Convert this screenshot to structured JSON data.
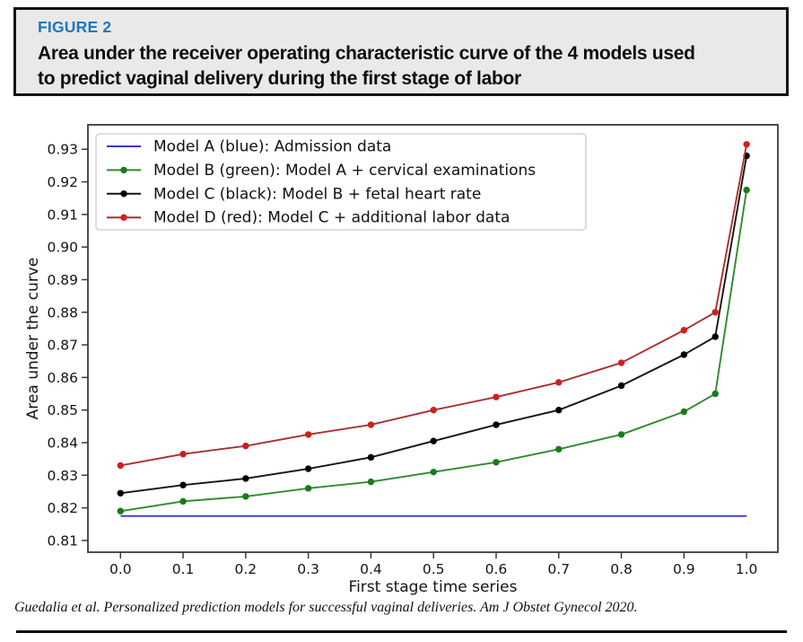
{
  "figure": {
    "label": "FIGURE 2",
    "label_color": "#1a78be",
    "title_line1": "Area under the receiver operating characteristic curve of the 4 models used",
    "title_line2": "to predict vaginal delivery during the first stage of labor"
  },
  "footer": {
    "citation": "Guedalia et al. Personalized prediction models for successful vaginal deliveries. Am J Obstet Gynecol 2020."
  },
  "chart_data": {
    "type": "line",
    "title": "",
    "xlabel": "First stage time series",
    "ylabel": "Area under the curve",
    "xlim": [
      -0.052,
      1.05
    ],
    "ylim": [
      0.8064,
      0.9375
    ],
    "grid": false,
    "legend_position": "upper left",
    "xticks": [
      0.0,
      0.1,
      0.2,
      0.3,
      0.4,
      0.5,
      0.6,
      0.7,
      0.8,
      0.9,
      1.0
    ],
    "xtick_labels": [
      "0.0",
      "0.1",
      "0.2",
      "0.3",
      "0.4",
      "0.5",
      "0.6",
      "0.7",
      "0.8",
      "0.9",
      "1.0"
    ],
    "yticks": [
      0.81,
      0.82,
      0.83,
      0.84,
      0.85,
      0.86,
      0.87,
      0.88,
      0.89,
      0.9,
      0.91,
      0.92,
      0.93
    ],
    "ytick_labels": [
      "0.81",
      "0.82",
      "0.83",
      "0.84",
      "0.85",
      "0.86",
      "0.87",
      "0.88",
      "0.89",
      "0.90",
      "0.91",
      "0.92",
      "0.93"
    ],
    "x": [
      0.0,
      0.1,
      0.2,
      0.3,
      0.4,
      0.5,
      0.6,
      0.7,
      0.8,
      0.9,
      0.95,
      1.0
    ],
    "series": [
      {
        "name": "Model A (blue): Admission data",
        "color": "#3b33e0",
        "marker": false,
        "values": [
          0.8175,
          0.8175,
          0.8175,
          0.8175,
          0.8175,
          0.8175,
          0.8175,
          0.8175,
          0.8175,
          0.8175,
          0.8175,
          0.8175
        ]
      },
      {
        "name": "Model B (green): Model A + cervical examinations",
        "color": "#2e8b2e",
        "marker": true,
        "marker_color": "#1b7a1b",
        "values": [
          0.819,
          0.822,
          0.8235,
          0.826,
          0.828,
          0.831,
          0.834,
          0.838,
          0.8425,
          0.8495,
          0.855,
          0.9175
        ]
      },
      {
        "name": "Model C (black): Model B + fetal heart rate",
        "color": "#141414",
        "marker": true,
        "marker_color": "#000000",
        "values": [
          0.8245,
          0.827,
          0.829,
          0.832,
          0.8355,
          0.8405,
          0.8455,
          0.85,
          0.8575,
          0.867,
          0.8725,
          0.928
        ]
      },
      {
        "name": "Model D (red): Model C + additional labor data",
        "color": "#a93030",
        "marker": true,
        "marker_color": "#cf1f1f",
        "values": [
          0.833,
          0.8365,
          0.839,
          0.8425,
          0.8455,
          0.85,
          0.854,
          0.8585,
          0.8645,
          0.8745,
          0.88,
          0.9315
        ]
      }
    ]
  }
}
